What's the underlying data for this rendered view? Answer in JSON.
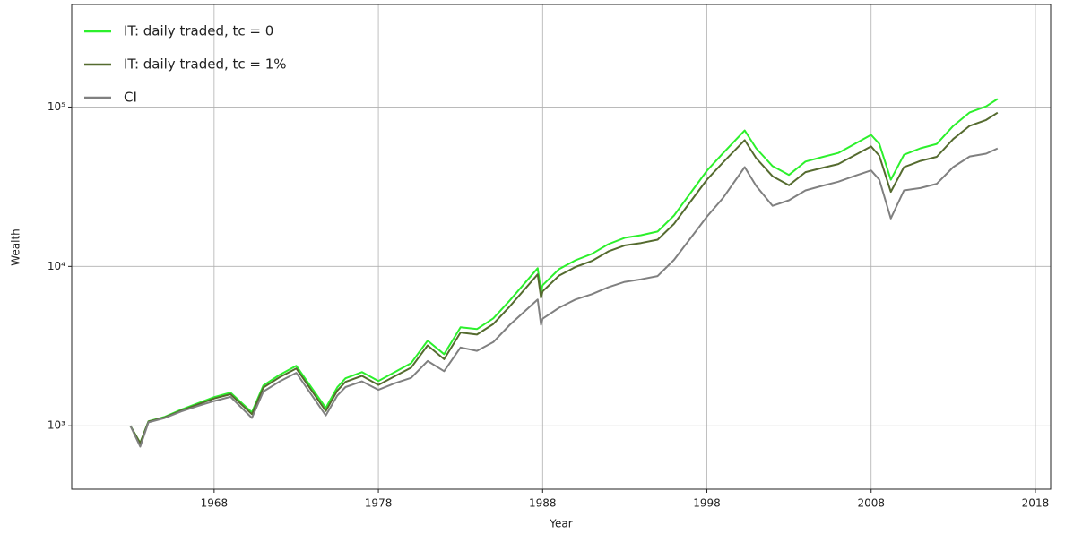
{
  "chart_data": {
    "type": "line",
    "x_label": "Year",
    "y_label": "Wealth",
    "log_y": true,
    "grid": true,
    "legend": "upper left",
    "xlim": [
      1959.33,
      2018.93
    ],
    "ylim": [
      400,
      440000
    ],
    "xticks": [
      1968,
      1978,
      1988,
      1998,
      2008,
      2018
    ],
    "yticks": [
      {
        "value": 1000,
        "label": "10³"
      },
      {
        "value": 10000,
        "label": "10⁴"
      },
      {
        "value": 100000,
        "label": "10⁵"
      }
    ],
    "x": [
      1962.9,
      1963.5,
      1964,
      1965,
      1966,
      1967,
      1968,
      1969,
      1970.3,
      1971,
      1972,
      1973,
      1974.8,
      1975.5,
      1976,
      1977,
      1978,
      1979,
      1980,
      1981,
      1982,
      1983,
      1984,
      1985,
      1986,
      1987.7,
      1987.9,
      1988,
      1989,
      1990,
      1991,
      1992,
      1993,
      1994,
      1995,
      1996,
      1997,
      1998,
      1999,
      2000.3,
      2001,
      2002,
      2003,
      2004,
      2005,
      2006,
      2007,
      2008,
      2008.5,
      2009.2,
      2010,
      2011,
      2012,
      2013,
      2014,
      2015,
      2015.7
    ],
    "series": [
      {
        "name": "IT: daily traded, tc = 0",
        "color": "#2cf02c",
        "values": [
          1000,
          780,
          1067,
          1138,
          1262,
          1382,
          1513,
          1614,
          1214,
          1790,
          2091,
          2379,
          1295,
          1744,
          1985,
          2173,
          1911,
          2173,
          2474,
          3419,
          2812,
          4151,
          4043,
          4725,
          6117,
          9752,
          6957,
          7623,
          9614,
          10930,
          11985,
          13800,
          15120,
          15700,
          16550,
          20880,
          28840,
          39810,
          51500,
          71300,
          55100,
          42600,
          37500,
          45500,
          48500,
          51500,
          58700,
          66900,
          58700,
          35000,
          50200,
          55100,
          58700,
          76100,
          92600,
          101000,
          112500
        ]
      },
      {
        "name": "IT: daily traded, tc = 1%",
        "color": "#556b2f",
        "values": [
          1000,
          778,
          1063,
          1129,
          1247,
          1361,
          1484,
          1578,
          1182,
          1738,
          2021,
          2290,
          1239,
          1664,
          1885,
          2058,
          1806,
          2046,
          2320,
          3195,
          2617,
          3850,
          3736,
          4350,
          5615,
          8920,
          6363,
          6968,
          8756,
          9914,
          10830,
          12420,
          13550,
          14020,
          14720,
          18500,
          25460,
          35000,
          45100,
          61950,
          47770,
          36800,
          32290,
          39040,
          41470,
          43880,
          49840,
          56600,
          49430,
          29370,
          41970,
          45900,
          48720,
          62930,
          76300,
          82920,
          92250
        ]
      },
      {
        "name": "CI",
        "color": "#808080",
        "values": [
          1000,
          740,
          1050,
          1120,
          1230,
          1330,
          1430,
          1520,
          1120,
          1640,
          1900,
          2150,
          1160,
          1550,
          1750,
          1900,
          1680,
          1850,
          2000,
          2550,
          2200,
          3100,
          2950,
          3350,
          4300,
          6200,
          4300,
          4700,
          5500,
          6200,
          6700,
          7400,
          8000,
          8300,
          8700,
          11000,
          15000,
          20500,
          27000,
          42000,
          32000,
          24000,
          26000,
          30000,
          32000,
          34000,
          37000,
          40000,
          35000,
          20000,
          30000,
          31000,
          33000,
          42000,
          49000,
          51000,
          55000
        ]
      }
    ]
  }
}
